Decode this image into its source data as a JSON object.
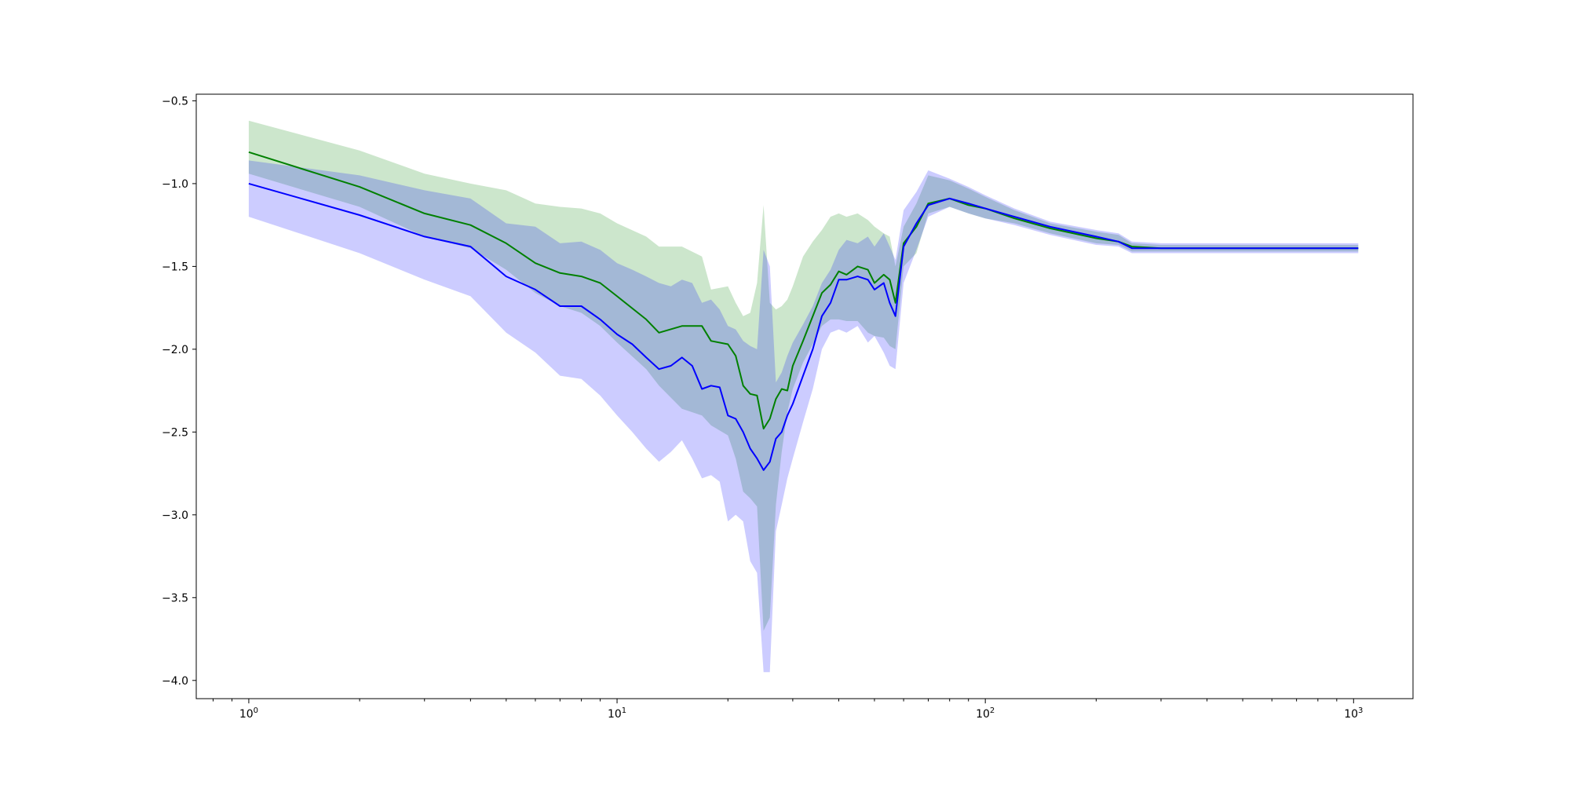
{
  "chart_data": {
    "type": "line",
    "xscale": "log",
    "xlim": [
      0.72,
      1450
    ],
    "ylim": [
      -4.11,
      -0.46
    ],
    "title": "",
    "xlabel": "",
    "ylabel": "",
    "grid": false,
    "legend": "none",
    "y_ticks": [
      -0.5,
      -1.0,
      -1.5,
      -2.0,
      -2.5,
      -3.0,
      -3.5,
      -4.0
    ],
    "y_tick_labels": [
      "−0.5",
      "−1.0",
      "−1.5",
      "−2.0",
      "−2.5",
      "−3.0",
      "−3.5",
      "−4.0"
    ],
    "x_ticks": [
      {
        "value": 1,
        "base": "10",
        "exponent": "0"
      },
      {
        "value": 10,
        "base": "10",
        "exponent": "1"
      },
      {
        "value": 100,
        "base": "10",
        "exponent": "2"
      },
      {
        "value": 1000,
        "base": "10",
        "exponent": "3"
      }
    ],
    "series": [
      {
        "color": "#008000",
        "band_color": "#008000",
        "band_opacity": 0.2,
        "x": [
          1,
          2,
          3,
          4,
          5,
          6,
          7,
          8,
          9,
          10,
          12,
          13,
          15,
          17,
          18,
          20,
          21,
          22,
          23,
          24,
          25,
          26,
          27,
          28,
          29,
          30,
          32,
          34,
          36,
          38,
          40,
          42,
          45,
          48,
          50,
          53,
          55,
          57,
          60,
          65,
          70,
          80,
          90,
          100,
          120,
          150,
          200,
          230,
          250,
          300,
          400,
          500,
          700,
          1000,
          1030
        ],
        "mean": [
          -0.81,
          -1.02,
          -1.18,
          -1.25,
          -1.36,
          -1.48,
          -1.54,
          -1.56,
          -1.6,
          -1.68,
          -1.82,
          -1.9,
          -1.86,
          -1.86,
          -1.95,
          -1.97,
          -2.04,
          -2.22,
          -2.27,
          -2.28,
          -2.48,
          -2.42,
          -2.3,
          -2.24,
          -2.25,
          -2.1,
          -1.95,
          -1.8,
          -1.66,
          -1.61,
          -1.53,
          -1.55,
          -1.5,
          -1.52,
          -1.6,
          -1.55,
          -1.58,
          -1.72,
          -1.36,
          -1.26,
          -1.12,
          -1.09,
          -1.13,
          -1.15,
          -1.21,
          -1.27,
          -1.33,
          -1.35,
          -1.38,
          -1.39,
          -1.39,
          -1.39,
          -1.39,
          -1.39,
          -1.39
        ],
        "lower": [
          -0.94,
          -1.14,
          -1.32,
          -1.39,
          -1.52,
          -1.66,
          -1.74,
          -1.78,
          -1.86,
          -1.96,
          -2.12,
          -2.22,
          -2.36,
          -2.4,
          -2.46,
          -2.52,
          -2.66,
          -2.86,
          -2.9,
          -2.95,
          -3.7,
          -3.62,
          -2.94,
          -2.62,
          -2.38,
          -2.24,
          -2.08,
          -1.97,
          -1.86,
          -1.82,
          -1.82,
          -1.83,
          -1.83,
          -1.9,
          -1.92,
          -1.93,
          -1.98,
          -2.0,
          -1.5,
          -1.42,
          -1.18,
          -1.14,
          -1.18,
          -1.21,
          -1.24,
          -1.3,
          -1.36,
          -1.37,
          -1.41,
          -1.41,
          -1.41,
          -1.41,
          -1.41,
          -1.41,
          -1.41
        ],
        "upper": [
          -0.62,
          -0.8,
          -0.94,
          -1.0,
          -1.04,
          -1.12,
          -1.14,
          -1.15,
          -1.18,
          -1.24,
          -1.32,
          -1.38,
          -1.38,
          -1.44,
          -1.64,
          -1.62,
          -1.72,
          -1.8,
          -1.78,
          -1.6,
          -1.13,
          -1.72,
          -1.76,
          -1.74,
          -1.7,
          -1.62,
          -1.44,
          -1.35,
          -1.28,
          -1.2,
          -1.18,
          -1.2,
          -1.18,
          -1.22,
          -1.26,
          -1.3,
          -1.32,
          -1.5,
          -1.26,
          -1.12,
          -0.95,
          -0.98,
          -1.03,
          -1.08,
          -1.16,
          -1.24,
          -1.29,
          -1.31,
          -1.36,
          -1.37,
          -1.37,
          -1.37,
          -1.37,
          -1.37,
          -1.37
        ]
      },
      {
        "color": "#0000ff",
        "band_color": "#0000ff",
        "band_opacity": 0.2,
        "x": [
          1,
          2,
          3,
          4,
          5,
          6,
          7,
          8,
          9,
          10,
          11,
          12,
          13,
          14,
          15,
          16,
          17,
          18,
          19,
          20,
          21,
          22,
          23,
          24,
          25,
          26,
          27,
          28,
          29,
          30,
          32,
          34,
          36,
          38,
          40,
          42,
          45,
          48,
          50,
          53,
          55,
          57,
          60,
          65,
          70,
          80,
          90,
          100,
          120,
          150,
          200,
          230,
          250,
          300,
          400,
          500,
          700,
          1000,
          1030
        ],
        "mean": [
          -1.0,
          -1.19,
          -1.32,
          -1.38,
          -1.56,
          -1.64,
          -1.74,
          -1.74,
          -1.82,
          -1.91,
          -1.97,
          -2.05,
          -2.12,
          -2.1,
          -2.05,
          -2.1,
          -2.24,
          -2.22,
          -2.23,
          -2.4,
          -2.42,
          -2.5,
          -2.6,
          -2.66,
          -2.73,
          -2.68,
          -2.54,
          -2.5,
          -2.4,
          -2.33,
          -2.16,
          -2.0,
          -1.8,
          -1.72,
          -1.58,
          -1.58,
          -1.56,
          -1.58,
          -1.64,
          -1.6,
          -1.72,
          -1.8,
          -1.38,
          -1.24,
          -1.13,
          -1.09,
          -1.12,
          -1.15,
          -1.2,
          -1.26,
          -1.32,
          -1.35,
          -1.39,
          -1.39,
          -1.39,
          -1.39,
          -1.39,
          -1.39,
          -1.39
        ],
        "lower": [
          -1.2,
          -1.42,
          -1.58,
          -1.68,
          -1.9,
          -2.02,
          -2.16,
          -2.18,
          -2.28,
          -2.4,
          -2.5,
          -2.6,
          -2.68,
          -2.62,
          -2.55,
          -2.66,
          -2.78,
          -2.76,
          -2.8,
          -3.04,
          -3.0,
          -3.04,
          -3.28,
          -3.35,
          -3.95,
          -3.95,
          -3.1,
          -2.94,
          -2.78,
          -2.66,
          -2.44,
          -2.24,
          -2.0,
          -1.9,
          -1.88,
          -1.9,
          -1.86,
          -1.96,
          -1.92,
          -2.02,
          -2.1,
          -2.12,
          -1.6,
          -1.4,
          -1.2,
          -1.14,
          -1.18,
          -1.21,
          -1.25,
          -1.31,
          -1.37,
          -1.38,
          -1.42,
          -1.42,
          -1.42,
          -1.42,
          -1.42,
          -1.42,
          -1.42
        ],
        "upper": [
          -0.86,
          -0.95,
          -1.04,
          -1.09,
          -1.24,
          -1.26,
          -1.36,
          -1.35,
          -1.4,
          -1.48,
          -1.52,
          -1.56,
          -1.6,
          -1.62,
          -1.58,
          -1.6,
          -1.72,
          -1.7,
          -1.76,
          -1.86,
          -1.88,
          -1.95,
          -1.98,
          -2.0,
          -1.4,
          -1.5,
          -2.2,
          -2.14,
          -2.04,
          -1.96,
          -1.85,
          -1.74,
          -1.6,
          -1.52,
          -1.4,
          -1.34,
          -1.36,
          -1.32,
          -1.38,
          -1.3,
          -1.38,
          -1.46,
          -1.16,
          -1.05,
          -0.92,
          -0.97,
          -1.02,
          -1.07,
          -1.15,
          -1.23,
          -1.28,
          -1.3,
          -1.35,
          -1.36,
          -1.36,
          -1.36,
          -1.36,
          -1.36,
          -1.36
        ]
      }
    ]
  }
}
